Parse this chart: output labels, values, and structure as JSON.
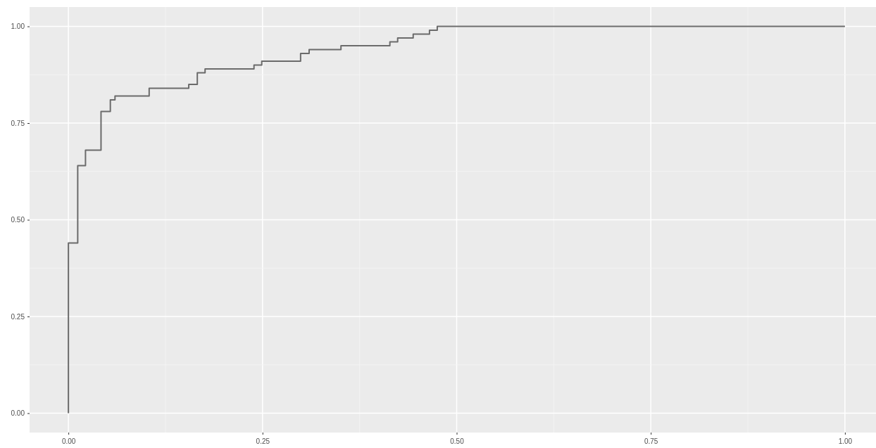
{
  "chart_data": {
    "type": "step",
    "x": [
      0,
      0,
      0.012,
      0.022,
      0.042,
      0.054,
      0.06,
      0.104,
      0.155,
      0.166,
      0.176,
      0.239,
      0.249,
      0.299,
      0.31,
      0.351,
      0.414,
      0.424,
      0.444,
      0.465,
      0.475,
      1
    ],
    "series": [
      {
        "color": "#6b6b6b",
        "values": [
          0,
          0.44,
          0.64,
          0.68,
          0.78,
          0.81,
          0.82,
          0.84,
          0.85,
          0.88,
          0.89,
          0.9,
          0.91,
          0.93,
          0.94,
          0.95,
          0.96,
          0.97,
          0.98,
          0.99,
          1,
          1
        ]
      }
    ],
    "xlim": [
      -0.05,
      1.04
    ],
    "ylim": [
      -0.05,
      1.05
    ],
    "xticks": [
      {
        "value": 0,
        "label": "0.00"
      },
      {
        "value": 0.25,
        "label": "0.25"
      },
      {
        "value": 0.5,
        "label": "0.50"
      },
      {
        "value": 0.75,
        "label": "0.75"
      },
      {
        "value": 1,
        "label": "1.00"
      }
    ],
    "yticks": [
      {
        "value": 0,
        "label": "0.00"
      },
      {
        "value": 0.25,
        "label": "0.25"
      },
      {
        "value": 0.5,
        "label": "0.50"
      },
      {
        "value": 0.75,
        "label": "0.75"
      },
      {
        "value": 1,
        "label": "1.00"
      }
    ],
    "grid": true
  }
}
